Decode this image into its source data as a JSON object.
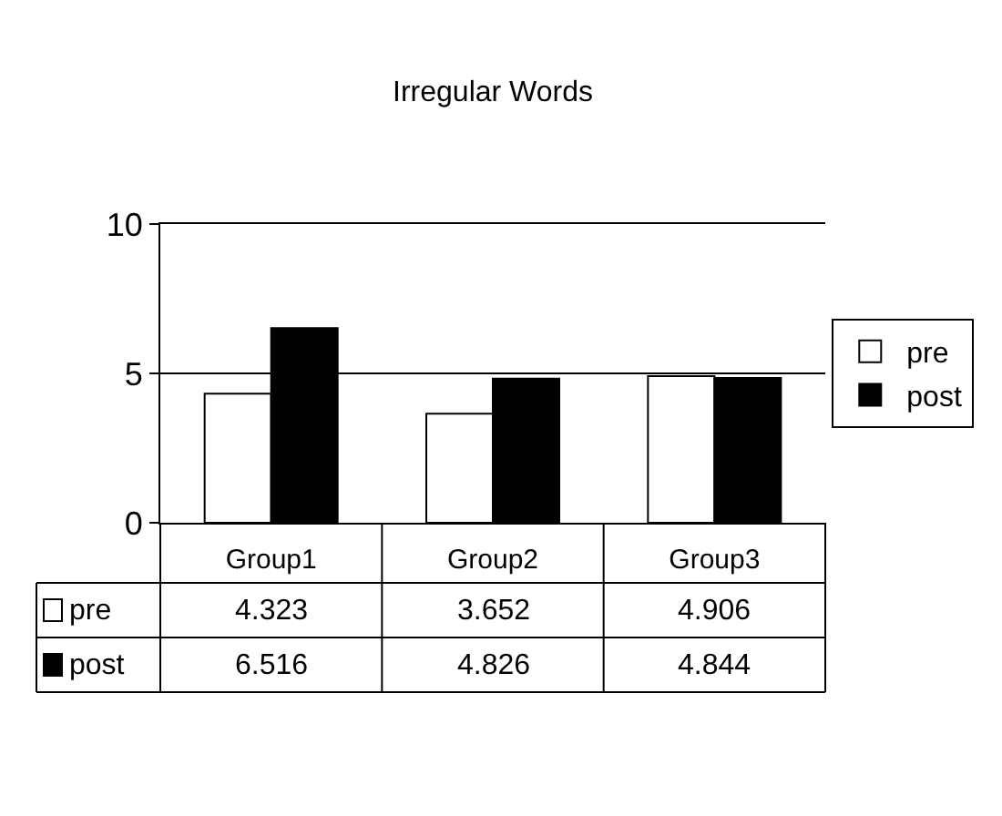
{
  "chart_data": {
    "type": "bar",
    "title": "Irregular Words",
    "categories": [
      "Group1",
      "Group2",
      "Group3"
    ],
    "series": [
      {
        "name": "pre",
        "color": "#ffffff",
        "values": [
          4.323,
          3.652,
          4.906
        ]
      },
      {
        "name": "post",
        "color": "#000000",
        "values": [
          6.516,
          4.826,
          4.844
        ]
      }
    ],
    "ylim": [
      0,
      10
    ],
    "yticks": [
      0,
      5,
      10
    ],
    "grid": "y",
    "legend": "right",
    "data_labels": true
  }
}
